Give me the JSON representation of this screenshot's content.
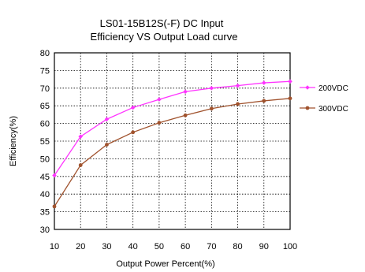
{
  "chart_data": {
    "type": "line",
    "title_line1": "LS01-15B12S(-F)  DC Input",
    "title_line2": "Efficiency VS Output Load  curve",
    "xlabel": "Output Power Percent(%)",
    "ylabel": "Efficiency(%)",
    "xlim": [
      10,
      100
    ],
    "ylim": [
      30,
      80
    ],
    "x_ticks": [
      10,
      20,
      30,
      40,
      50,
      60,
      70,
      80,
      90,
      100
    ],
    "y_ticks": [
      30,
      35,
      40,
      45,
      50,
      55,
      60,
      65,
      70,
      75,
      80
    ],
    "grid": true,
    "legend_position": "right",
    "series": [
      {
        "name": "200VDC",
        "color": "#ff33ff",
        "marker": "diamond",
        "x": [
          10,
          20,
          30,
          40,
          50,
          60,
          70,
          80,
          90,
          100
        ],
        "y": [
          45.3,
          56.3,
          61.2,
          64.5,
          66.8,
          69.0,
          70.0,
          70.7,
          71.5,
          71.9
        ]
      },
      {
        "name": "300VDC",
        "color": "#a0522d",
        "marker": "circle",
        "x": [
          10,
          20,
          30,
          40,
          50,
          60,
          70,
          80,
          90,
          100
        ],
        "y": [
          36.5,
          48.2,
          54.0,
          57.5,
          60.2,
          62.3,
          64.2,
          65.5,
          66.4,
          67.1
        ]
      }
    ]
  }
}
